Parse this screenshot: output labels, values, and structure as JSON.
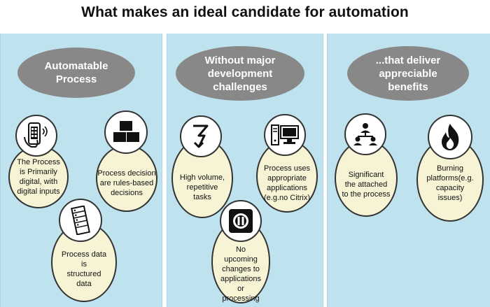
{
  "title": "What makes an ideal candidate for automation",
  "columns": [
    {
      "heading": [
        "Automatable",
        "Process"
      ],
      "items": [
        {
          "text": [
            "The Process",
            "is Primarily",
            "digital, with",
            "digital inputs"
          ],
          "icon": "smartphone-icon"
        },
        {
          "text": [
            "Process decision",
            "are rules-based",
            "decisions"
          ],
          "icon": "blocks-icon"
        },
        {
          "text": [
            "Process data is",
            "structured",
            "data"
          ],
          "icon": "server-rack-icon"
        }
      ]
    },
    {
      "heading": [
        "Without major",
        "development",
        "challenges"
      ],
      "items": [
        {
          "text": [
            "High volume,",
            "repetitive tasks"
          ],
          "icon": "repeat-arrow-icon"
        },
        {
          "text": [
            "Process uses",
            "appropriate",
            "applications",
            "(e.g.no Citrix)"
          ],
          "icon": "desktop-computer-icon"
        },
        {
          "text": [
            "No upcoming",
            "changes to",
            "applications or",
            "processing"
          ],
          "icon": "pause-icon"
        }
      ]
    },
    {
      "heading": [
        "...that deliver",
        "appreciable",
        "benefits"
      ],
      "items": [
        {
          "text": [
            "Significant",
            "the attached",
            "to the process"
          ],
          "icon": "org-chart-icon"
        },
        {
          "text": [
            "Burning",
            "platforms(e.g.",
            "capacity issues)"
          ],
          "icon": "flame-icon"
        }
      ]
    }
  ]
}
